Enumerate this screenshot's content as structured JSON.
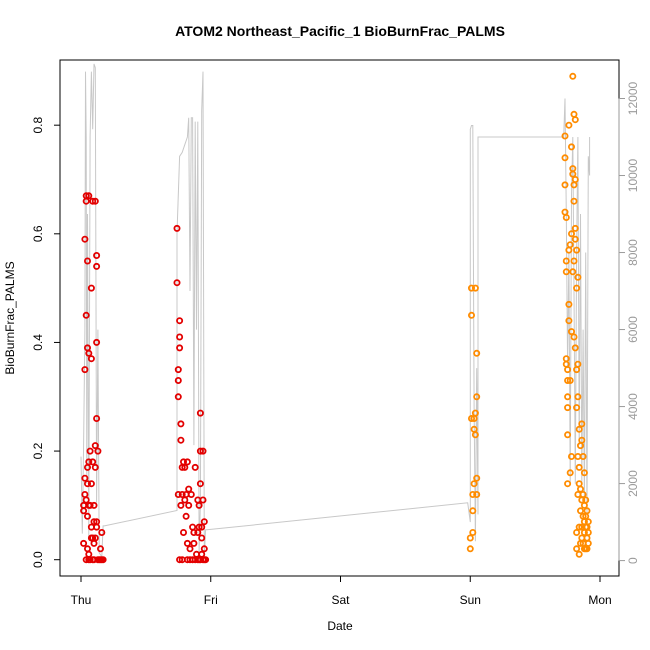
{
  "chart_data": {
    "type": "scatter",
    "title": "ATOM2 Northeast_Pacific_1 BioBurnFrac_PALMS",
    "xlabel": "Date",
    "ylabel": "BioBurnFrac_PALMS",
    "x_ticks": [
      "Thu",
      "Fri",
      "Sat",
      "Sun",
      "Mon"
    ],
    "y_ticks": [
      "0.0",
      "0.2",
      "0.4",
      "0.6",
      "0.8"
    ],
    "ylim": [
      -0.03,
      0.92
    ],
    "y2_ticks": [
      "0",
      "2000",
      "4000",
      "6000",
      "8000",
      "10000",
      "12000"
    ],
    "y2lim": [
      -400,
      13000
    ],
    "grid": false,
    "series": [
      {
        "color": "#e30000",
        "marker": "open-circle",
        "points": [
          [
            0.02,
            0.09
          ],
          [
            0.02,
            0.1
          ],
          [
            0.02,
            0.03
          ],
          [
            0.03,
            0.12
          ],
          [
            0.03,
            0.15
          ],
          [
            0.03,
            0.35
          ],
          [
            0.03,
            0.59
          ],
          [
            0.04,
            0.66
          ],
          [
            0.04,
            0.67
          ],
          [
            0.04,
            0.45
          ],
          [
            0.04,
            0.11
          ],
          [
            0.04,
            0.0
          ],
          [
            0.05,
            0.14
          ],
          [
            0.05,
            0.17
          ],
          [
            0.05,
            0.55
          ],
          [
            0.05,
            0.39
          ],
          [
            0.05,
            0.08
          ],
          [
            0.06,
            0.67
          ],
          [
            0.06,
            0.38
          ],
          [
            0.06,
            0.18
          ],
          [
            0.06,
            0.1
          ],
          [
            0.06,
            0.01
          ],
          [
            0.07,
            0.2
          ],
          [
            0.07,
            0.0
          ],
          [
            0.08,
            0.04
          ],
          [
            0.08,
            0.5
          ],
          [
            0.08,
            0.37
          ],
          [
            0.08,
            0.06
          ],
          [
            0.09,
            0.66
          ],
          [
            0.09,
            0.0
          ],
          [
            0.1,
            0.07
          ],
          [
            0.1,
            0.03
          ],
          [
            0.11,
            0.66
          ],
          [
            0.11,
            0.21
          ],
          [
            0.11,
            0.17
          ],
          [
            0.11,
            0.04
          ],
          [
            0.12,
            0.56
          ],
          [
            0.12,
            0.54
          ],
          [
            0.12,
            0.4
          ],
          [
            0.12,
            0.26
          ],
          [
            0.12,
            0.06
          ],
          [
            0.13,
            0.2
          ],
          [
            0.13,
            0.0
          ],
          [
            0.14,
            0.0
          ],
          [
            0.15,
            0.02
          ],
          [
            0.15,
            0.0
          ],
          [
            0.16,
            0.0
          ],
          [
            0.16,
            0.05
          ],
          [
            0.17,
            0.0
          ],
          [
            0.1,
            0.0
          ],
          [
            0.09,
            0.04
          ],
          [
            0.07,
            0.1
          ],
          [
            0.05,
            0.02
          ],
          [
            0.06,
            0.0
          ],
          [
            0.08,
            0.14
          ],
          [
            0.1,
            0.1
          ],
          [
            0.12,
            0.07
          ],
          [
            0.09,
            0.18
          ],
          [
            0.74,
            0.61
          ],
          [
            0.74,
            0.51
          ],
          [
            0.75,
            0.35
          ],
          [
            0.75,
            0.3
          ],
          [
            0.75,
            0.33
          ],
          [
            0.75,
            0.12
          ],
          [
            0.76,
            0.44
          ],
          [
            0.76,
            0.41
          ],
          [
            0.76,
            0.39
          ],
          [
            0.76,
            0.0
          ],
          [
            0.77,
            0.25
          ],
          [
            0.77,
            0.22
          ],
          [
            0.77,
            0.1
          ],
          [
            0.78,
            0.12
          ],
          [
            0.78,
            0.17
          ],
          [
            0.78,
            0.0
          ],
          [
            0.79,
            0.18
          ],
          [
            0.79,
            0.05
          ],
          [
            0.8,
            0.17
          ],
          [
            0.8,
            0.11
          ],
          [
            0.81,
            0.12
          ],
          [
            0.81,
            0.08
          ],
          [
            0.82,
            0.18
          ],
          [
            0.82,
            0.03
          ],
          [
            0.82,
            0.0
          ],
          [
            0.83,
            0.1
          ],
          [
            0.83,
            0.13
          ],
          [
            0.84,
            0.02
          ],
          [
            0.84,
            0.0
          ],
          [
            0.85,
            0.12
          ],
          [
            0.86,
            0.06
          ],
          [
            0.86,
            0.0
          ],
          [
            0.87,
            0.05
          ],
          [
            0.87,
            0.03
          ],
          [
            0.88,
            0.17
          ],
          [
            0.88,
            0.0
          ],
          [
            0.89,
            0.01
          ],
          [
            0.9,
            0.05
          ],
          [
            0.9,
            0.0
          ],
          [
            0.91,
            0.1
          ],
          [
            0.91,
            0.06
          ],
          [
            0.91,
            0.0
          ],
          [
            0.92,
            0.27
          ],
          [
            0.92,
            0.2
          ],
          [
            0.92,
            0.14
          ],
          [
            0.93,
            0.06
          ],
          [
            0.93,
            0.01
          ],
          [
            0.94,
            0.11
          ],
          [
            0.94,
            0.2
          ],
          [
            0.94,
            0.0
          ],
          [
            0.95,
            0.07
          ],
          [
            0.95,
            0.02
          ],
          [
            0.95,
            0.0
          ],
          [
            0.96,
            0.0
          ],
          [
            0.93,
            0.04
          ],
          [
            0.92,
            0.0
          ],
          [
            0.9,
            0.11
          ]
        ]
      },
      {
        "color": "#ff8c00",
        "marker": "open-circle",
        "points": [
          [
            3.0,
            0.02
          ],
          [
            3.0,
            0.04
          ],
          [
            3.01,
            0.45
          ],
          [
            3.01,
            0.5
          ],
          [
            3.01,
            0.26
          ],
          [
            3.02,
            0.05
          ],
          [
            3.02,
            0.09
          ],
          [
            3.02,
            0.12
          ],
          [
            3.03,
            0.26
          ],
          [
            3.03,
            0.24
          ],
          [
            3.03,
            0.14
          ],
          [
            3.04,
            0.5
          ],
          [
            3.04,
            0.27
          ],
          [
            3.04,
            0.23
          ],
          [
            3.05,
            0.38
          ],
          [
            3.05,
            0.3
          ],
          [
            3.05,
            0.15
          ],
          [
            3.05,
            0.12
          ],
          [
            3.73,
            0.78
          ],
          [
            3.73,
            0.74
          ],
          [
            3.73,
            0.69
          ],
          [
            3.73,
            0.64
          ],
          [
            3.74,
            0.63
          ],
          [
            3.74,
            0.55
          ],
          [
            3.74,
            0.53
          ],
          [
            3.74,
            0.37
          ],
          [
            3.74,
            0.36
          ],
          [
            3.75,
            0.35
          ],
          [
            3.75,
            0.33
          ],
          [
            3.75,
            0.3
          ],
          [
            3.75,
            0.28
          ],
          [
            3.75,
            0.23
          ],
          [
            3.75,
            0.14
          ],
          [
            3.76,
            0.8
          ],
          [
            3.76,
            0.57
          ],
          [
            3.76,
            0.47
          ],
          [
            3.76,
            0.44
          ],
          [
            3.77,
            0.16
          ],
          [
            3.77,
            0.33
          ],
          [
            3.77,
            0.58
          ],
          [
            3.78,
            0.76
          ],
          [
            3.78,
            0.6
          ],
          [
            3.78,
            0.42
          ],
          [
            3.78,
            0.19
          ],
          [
            3.79,
            0.89
          ],
          [
            3.79,
            0.72
          ],
          [
            3.79,
            0.71
          ],
          [
            3.79,
            0.53
          ],
          [
            3.8,
            0.82
          ],
          [
            3.8,
            0.69
          ],
          [
            3.8,
            0.66
          ],
          [
            3.8,
            0.55
          ],
          [
            3.8,
            0.41
          ],
          [
            3.81,
            0.81
          ],
          [
            3.81,
            0.7
          ],
          [
            3.81,
            0.61
          ],
          [
            3.81,
            0.59
          ],
          [
            3.81,
            0.39
          ],
          [
            3.82,
            0.57
          ],
          [
            3.82,
            0.5
          ],
          [
            3.82,
            0.35
          ],
          [
            3.82,
            0.28
          ],
          [
            3.82,
            0.05
          ],
          [
            3.83,
            0.52
          ],
          [
            3.83,
            0.36
          ],
          [
            3.83,
            0.3
          ],
          [
            3.83,
            0.19
          ],
          [
            3.83,
            0.12
          ],
          [
            3.84,
            0.24
          ],
          [
            3.84,
            0.17
          ],
          [
            3.84,
            0.14
          ],
          [
            3.84,
            0.06
          ],
          [
            3.85,
            0.21
          ],
          [
            3.85,
            0.13
          ],
          [
            3.85,
            0.09
          ],
          [
            3.85,
            0.03
          ],
          [
            3.86,
            0.25
          ],
          [
            3.86,
            0.22
          ],
          [
            3.86,
            0.11
          ],
          [
            3.86,
            0.06
          ],
          [
            3.87,
            0.19
          ],
          [
            3.87,
            0.12
          ],
          [
            3.87,
            0.08
          ],
          [
            3.87,
            0.03
          ],
          [
            3.88,
            0.16
          ],
          [
            3.88,
            0.1
          ],
          [
            3.88,
            0.07
          ],
          [
            3.88,
            0.05
          ],
          [
            3.89,
            0.11
          ],
          [
            3.89,
            0.08
          ],
          [
            3.89,
            0.06
          ],
          [
            3.89,
            0.02
          ],
          [
            3.9,
            0.09
          ],
          [
            3.9,
            0.06
          ],
          [
            3.9,
            0.04
          ],
          [
            3.91,
            0.07
          ],
          [
            3.91,
            0.03
          ],
          [
            3.82,
            0.02
          ],
          [
            3.84,
            0.01
          ],
          [
            3.86,
            0.04
          ],
          [
            3.88,
            0.02
          ],
          [
            3.9,
            0.02
          ],
          [
            3.91,
            0.05
          ]
        ]
      },
      {
        "color": "#c8c8c8",
        "axis": "right",
        "style": "line",
        "points": [
          [
            0.0,
            2700
          ],
          [
            0.01,
            700
          ],
          [
            0.02,
            3000
          ],
          [
            0.03,
            6000
          ],
          [
            0.035,
            12700
          ],
          [
            0.04,
            11000
          ],
          [
            0.045,
            2000
          ],
          [
            0.05,
            9000
          ],
          [
            0.06,
            600
          ],
          [
            0.07,
            11000
          ],
          [
            0.08,
            12700
          ],
          [
            0.09,
            11200
          ],
          [
            0.1,
            12900
          ],
          [
            0.11,
            12800
          ],
          [
            0.12,
            1500
          ],
          [
            0.13,
            6000
          ],
          [
            0.14,
            200
          ],
          [
            0.16,
            100
          ],
          [
            0.17,
            900
          ],
          [
            0.18,
            900
          ],
          [
            0.74,
            1300
          ],
          [
            0.74,
            8500
          ],
          [
            0.75,
            9500
          ],
          [
            0.76,
            10500
          ],
          [
            0.78,
            10600
          ],
          [
            0.8,
            10800
          ],
          [
            0.81,
            10900
          ],
          [
            0.82,
            11000
          ],
          [
            0.83,
            11500
          ],
          [
            0.84,
            7000
          ],
          [
            0.85,
            11500
          ],
          [
            0.86,
            11500
          ],
          [
            0.87,
            3000
          ],
          [
            0.88,
            11400
          ],
          [
            0.89,
            6000
          ],
          [
            0.9,
            11400
          ],
          [
            0.91,
            200
          ],
          [
            0.92,
            1500
          ],
          [
            0.93,
            11700
          ],
          [
            0.94,
            12700
          ],
          [
            0.95,
            100
          ],
          [
            0.96,
            800
          ],
          [
            0.97,
            800
          ],
          [
            2.98,
            1500
          ],
          [
            3.0,
            1000
          ],
          [
            3.0,
            11200
          ],
          [
            3.01,
            11300
          ],
          [
            3.02,
            11300
          ],
          [
            3.03,
            4000
          ],
          [
            3.04,
            500
          ],
          [
            3.05,
            5000
          ],
          [
            3.06,
            1200
          ],
          [
            3.06,
            11000
          ],
          [
            3.7,
            11000
          ],
          [
            3.72,
            11000
          ],
          [
            3.73,
            12000
          ],
          [
            3.74,
            9000
          ],
          [
            3.75,
            5000
          ],
          [
            3.76,
            8000
          ],
          [
            3.77,
            2000
          ],
          [
            3.78,
            9500
          ],
          [
            3.79,
            11000
          ],
          [
            3.8,
            7000
          ],
          [
            3.81,
            2000
          ],
          [
            3.82,
            8000
          ],
          [
            3.83,
            11000
          ],
          [
            3.84,
            3000
          ],
          [
            3.85,
            9000
          ],
          [
            3.86,
            2000
          ],
          [
            3.87,
            6000
          ],
          [
            3.88,
            1500
          ],
          [
            3.89,
            8000
          ],
          [
            3.9,
            1200
          ],
          [
            3.91,
            10500
          ],
          [
            3.92,
            10000
          ],
          [
            3.92,
            11000
          ]
        ]
      }
    ]
  }
}
